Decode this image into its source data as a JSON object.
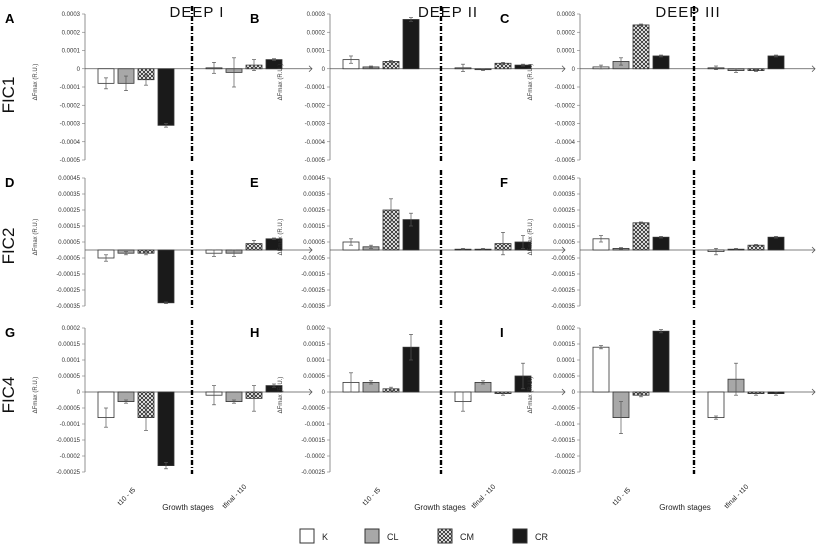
{
  "colors": {
    "K": "#ffffff",
    "CL": "#a8a8a8",
    "CR": "#1a1a1a",
    "stroke": "#333333"
  },
  "figure": {
    "col_titles": [
      "DEEP I",
      "DEEP II",
      "DEEP III"
    ],
    "row_labels": [
      "FIC1",
      "FIC2",
      "FIC4"
    ],
    "panel_letters": [
      "A",
      "B",
      "C",
      "D",
      "E",
      "F",
      "G",
      "H",
      "I"
    ],
    "ylabel": "ΔFmax (R.U.)",
    "xlabel": "Growth stages",
    "xticks": [
      "t10 - t5",
      "tfinal - t10"
    ]
  },
  "legend": [
    "K",
    "CL",
    "CM",
    "CR"
  ],
  "chart_data": [
    {
      "type": "bar",
      "title": "A",
      "column": "DEEP I",
      "row": "FIC1",
      "categories": [
        "t10 - t5",
        "tfinal - t10"
      ],
      "ylim": [
        -0.0005,
        0.0003
      ],
      "yticks": [
        "0.0003",
        "0.0002",
        "0.0001",
        "0",
        "-0.0001",
        "-0.0002",
        "-0.0003",
        "-0.0004",
        "-0.0005"
      ],
      "series": [
        {
          "name": "K",
          "values": [
            -8e-05,
            5e-06
          ],
          "errors": [
            3e-05,
            3e-05
          ]
        },
        {
          "name": "CL",
          "values": [
            -8e-05,
            -2e-05
          ],
          "errors": [
            4e-05,
            8e-05
          ]
        },
        {
          "name": "CM",
          "values": [
            -6e-05,
            2e-05
          ],
          "errors": [
            3e-05,
            3e-05
          ]
        },
        {
          "name": "CR",
          "values": [
            -0.00031,
            5e-05
          ],
          "errors": [
            1e-05,
            5e-06
          ]
        }
      ]
    },
    {
      "type": "bar",
      "title": "B",
      "column": "DEEP II",
      "row": "FIC1",
      "categories": [
        "t10 - t5",
        "tfinal - t10"
      ],
      "ylim": [
        -0.0005,
        0.0003
      ],
      "yticks": [
        "0.0003",
        "0.0002",
        "0.0001",
        "0",
        "-0.0001",
        "-0.0002",
        "-0.0003",
        "-0.0004",
        "-0.0005"
      ],
      "series": [
        {
          "name": "K",
          "values": [
            5e-05,
            5e-06
          ],
          "errors": [
            2e-05,
            2e-05
          ]
        },
        {
          "name": "CL",
          "values": [
            1e-05,
            -5e-06
          ],
          "errors": [
            5e-06,
            5e-06
          ]
        },
        {
          "name": "CM",
          "values": [
            4e-05,
            3e-05
          ],
          "errors": [
            5e-06,
            5e-06
          ]
        },
        {
          "name": "CR",
          "values": [
            0.00027,
            2e-05
          ],
          "errors": [
            1e-05,
            5e-06
          ]
        }
      ]
    },
    {
      "type": "bar",
      "title": "C",
      "column": "DEEP III",
      "row": "FIC1",
      "categories": [
        "t10 - t5",
        "tfinal - t10"
      ],
      "ylim": [
        -0.0005,
        0.0003
      ],
      "yticks": [
        "0.0003",
        "0.0002",
        "0.0001",
        "0",
        "-0.0001",
        "-0.0002",
        "-0.0003",
        "-0.0004",
        "-0.0005"
      ],
      "series": [
        {
          "name": "K",
          "values": [
            1e-05,
            5e-06
          ],
          "errors": [
            1e-05,
            1e-05
          ]
        },
        {
          "name": "CL",
          "values": [
            4e-05,
            -1e-05
          ],
          "errors": [
            2e-05,
            1e-05
          ]
        },
        {
          "name": "CM",
          "values": [
            0.00024,
            -1e-05
          ],
          "errors": [
            5e-06,
            5e-06
          ]
        },
        {
          "name": "CR",
          "values": [
            7e-05,
            7e-05
          ],
          "errors": [
            5e-06,
            5e-06
          ]
        }
      ]
    },
    {
      "type": "bar",
      "title": "D",
      "column": "DEEP I",
      "row": "FIC2",
      "categories": [
        "t10 - t5",
        "tfinal - t10"
      ],
      "ylim": [
        -0.00035,
        0.00045
      ],
      "yticks": [
        "0.00045",
        "0.00035",
        "0.00025",
        "0.00015",
        "0.00005",
        "-0.00005",
        "-0.00015",
        "-0.00025",
        "-0.00035"
      ],
      "series": [
        {
          "name": "K",
          "values": [
            -5e-05,
            -2e-05
          ],
          "errors": [
            2e-05,
            2e-05
          ]
        },
        {
          "name": "CL",
          "values": [
            -2e-05,
            -2e-05
          ],
          "errors": [
            1e-05,
            2e-05
          ]
        },
        {
          "name": "CM",
          "values": [
            -2e-05,
            4e-05
          ],
          "errors": [
            1e-05,
            2e-05
          ]
        },
        {
          "name": "CR",
          "values": [
            -0.00033,
            7e-05
          ],
          "errors": [
            5e-06,
            5e-06
          ]
        }
      ]
    },
    {
      "type": "bar",
      "title": "E",
      "column": "DEEP II",
      "row": "FIC2",
      "categories": [
        "t10 - t5",
        "tfinal - t10"
      ],
      "ylim": [
        -0.00035,
        0.00045
      ],
      "yticks": [
        "0.00045",
        "0.00035",
        "0.00025",
        "0.00015",
        "0.00005",
        "-0.00005",
        "-0.00015",
        "-0.00025",
        "-0.00035"
      ],
      "series": [
        {
          "name": "K",
          "values": [
            5e-05,
            5e-06
          ],
          "errors": [
            2e-05,
            5e-06
          ]
        },
        {
          "name": "CL",
          "values": [
            2e-05,
            5e-06
          ],
          "errors": [
            1e-05,
            5e-06
          ]
        },
        {
          "name": "CM",
          "values": [
            0.00025,
            4e-05
          ],
          "errors": [
            7e-05,
            7e-05
          ]
        },
        {
          "name": "CR",
          "values": [
            0.00019,
            5e-05
          ],
          "errors": [
            4e-05,
            4e-05
          ]
        }
      ]
    },
    {
      "type": "bar",
      "title": "F",
      "column": "DEEP III",
      "row": "FIC2",
      "categories": [
        "t10 - t5",
        "tfinal - t10"
      ],
      "ylim": [
        -0.00035,
        0.00045
      ],
      "yticks": [
        "0.00045",
        "0.00035",
        "0.00025",
        "0.00015",
        "0.00005",
        "-0.00005",
        "-0.00015",
        "-0.00025",
        "-0.00035"
      ],
      "series": [
        {
          "name": "K",
          "values": [
            7e-05,
            -1e-05
          ],
          "errors": [
            2e-05,
            2e-05
          ]
        },
        {
          "name": "CL",
          "values": [
            1e-05,
            5e-06
          ],
          "errors": [
            5e-06,
            5e-06
          ]
        },
        {
          "name": "CM",
          "values": [
            0.00017,
            3e-05
          ],
          "errors": [
            5e-06,
            5e-06
          ]
        },
        {
          "name": "CR",
          "values": [
            8e-05,
            8e-05
          ],
          "errors": [
            5e-06,
            5e-06
          ]
        }
      ]
    },
    {
      "type": "bar",
      "title": "G",
      "column": "DEEP I",
      "row": "FIC4",
      "categories": [
        "t10 - t5",
        "tfinal - t10"
      ],
      "ylim": [
        -0.00025,
        0.0002
      ],
      "yticks": [
        "0.0002",
        "0.00015",
        "0.0001",
        "0.00005",
        "0",
        "-0.00005",
        "-0.0001",
        "-0.00015",
        "-0.0002",
        "-0.00025"
      ],
      "series": [
        {
          "name": "K",
          "values": [
            -8e-05,
            -1e-05
          ],
          "errors": [
            3e-05,
            3e-05
          ]
        },
        {
          "name": "CL",
          "values": [
            -3e-05,
            -3e-05
          ],
          "errors": [
            5e-06,
            5e-06
          ]
        },
        {
          "name": "CM",
          "values": [
            -8e-05,
            -2e-05
          ],
          "errors": [
            4e-05,
            4e-05
          ]
        },
        {
          "name": "CR",
          "values": [
            -0.00023,
            2e-05
          ],
          "errors": [
            1e-05,
            5e-06
          ]
        }
      ]
    },
    {
      "type": "bar",
      "title": "H",
      "column": "DEEP II",
      "row": "FIC4",
      "categories": [
        "t10 - t5",
        "tfinal - t10"
      ],
      "ylim": [
        -0.00025,
        0.0002
      ],
      "yticks": [
        "0.0002",
        "0.00015",
        "0.0001",
        "0.00005",
        "0",
        "-0.00005",
        "-0.0001",
        "-0.00015",
        "-0.0002",
        "-0.00025"
      ],
      "series": [
        {
          "name": "K",
          "values": [
            3e-05,
            -3e-05
          ],
          "errors": [
            3e-05,
            3e-05
          ]
        },
        {
          "name": "CL",
          "values": [
            3e-05,
            3e-05
          ],
          "errors": [
            5e-06,
            5e-06
          ]
        },
        {
          "name": "CM",
          "values": [
            1e-05,
            -5e-06
          ],
          "errors": [
            5e-06,
            5e-06
          ]
        },
        {
          "name": "CR",
          "values": [
            0.00014,
            5e-05
          ],
          "errors": [
            4e-05,
            4e-05
          ]
        }
      ]
    },
    {
      "type": "bar",
      "title": "I",
      "column": "DEEP III",
      "row": "FIC4",
      "categories": [
        "t10 - t5",
        "tfinal - t10"
      ],
      "ylim": [
        -0.00025,
        0.0002
      ],
      "yticks": [
        "0.0002",
        "0.00015",
        "0.0001",
        "0.00005",
        "0",
        "-0.00005",
        "-0.0001",
        "-0.00015",
        "-0.0002",
        "-0.00025"
      ],
      "series": [
        {
          "name": "K",
          "values": [
            0.00014,
            -8e-05
          ],
          "errors": [
            5e-06,
            5e-06
          ]
        },
        {
          "name": "CL",
          "values": [
            -8e-05,
            4e-05
          ],
          "errors": [
            5e-05,
            5e-05
          ]
        },
        {
          "name": "CM",
          "values": [
            -1e-05,
            -5e-06
          ],
          "errors": [
            5e-06,
            5e-06
          ]
        },
        {
          "name": "CR",
          "values": [
            0.00019,
            -5e-06
          ],
          "errors": [
            5e-06,
            5e-06
          ]
        }
      ]
    }
  ]
}
